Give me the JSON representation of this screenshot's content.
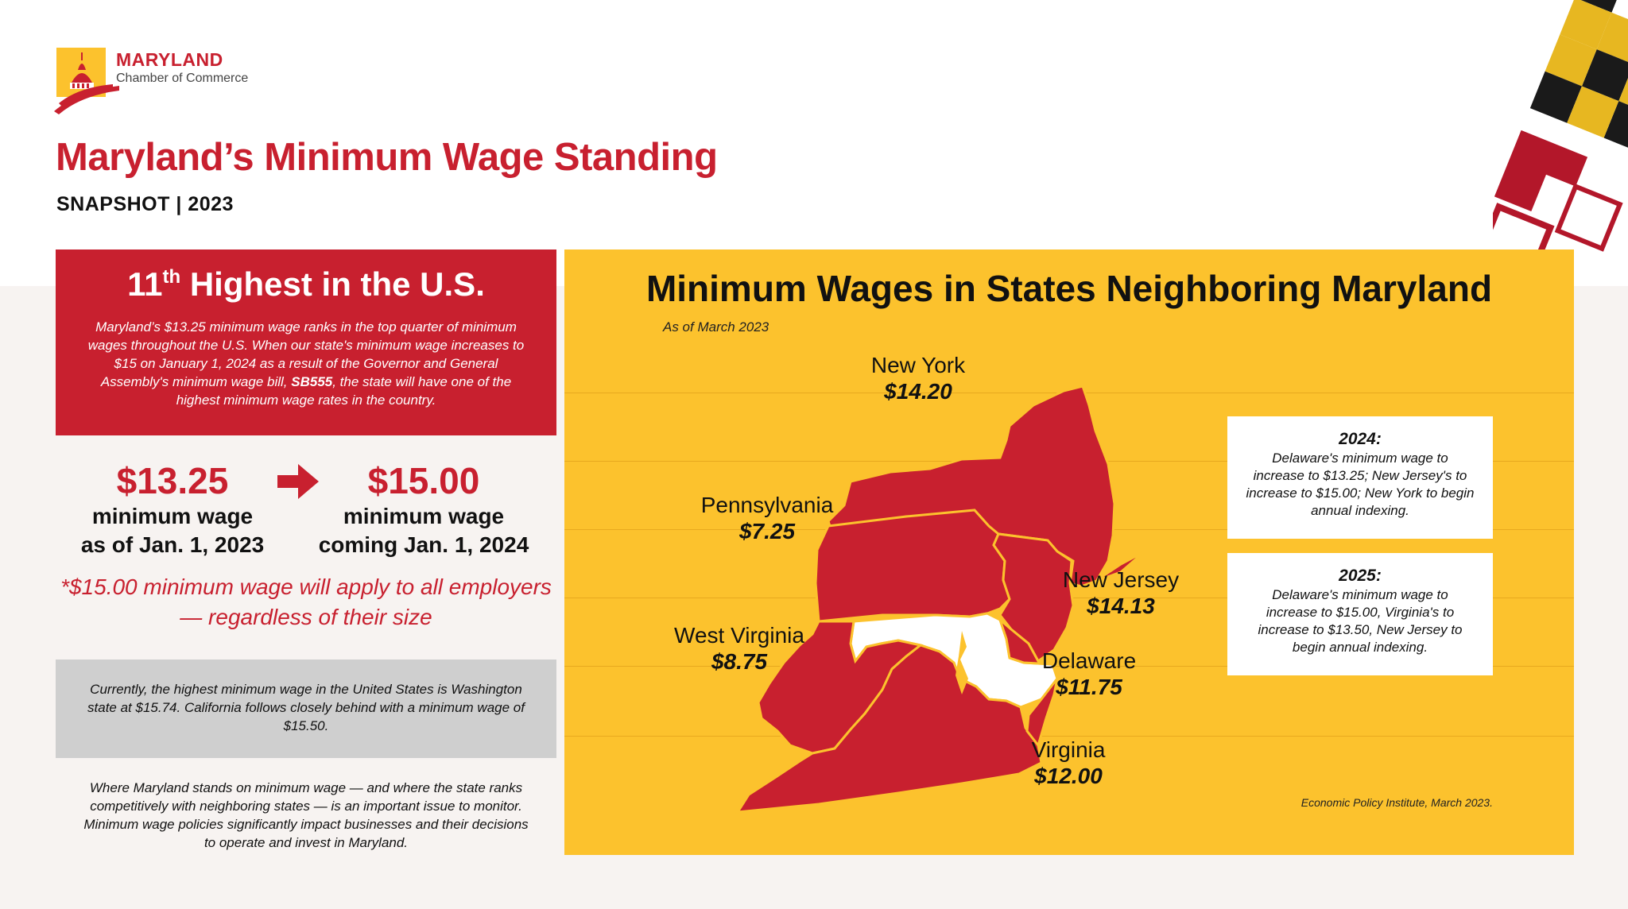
{
  "logo": {
    "name": "MARYLAND",
    "subtitle": "Chamber of Commerce"
  },
  "header": {
    "title": "Maryland’s Minimum Wage Standing",
    "subtitle": "SNAPSHOT | 2023"
  },
  "ranking": {
    "rank_number": "11",
    "rank_suffix": "th",
    "rank_rest": " Highest in the U.S.",
    "body_before": "Maryland’s $13.25 minimum wage ranks in the top quarter of minimum wages throughout the U.S. When our state's minimum wage increases to $15 on January 1, 2024 as a result of the Governor and General Assembly's minimum wage bill, ",
    "body_bold": "SB555",
    "body_after": ", the state will have one of the highest minimum wage rates in the country."
  },
  "wage_change": {
    "current": {
      "value": "$13.25",
      "line1": "minimum wage",
      "line2": "as of Jan. 1, 2023"
    },
    "future": {
      "value": "$15.00",
      "line1": "minimum wage",
      "line2": "coming Jan. 1, 2024"
    },
    "note": "*$15.00 minimum wage will apply to all employers — regardless of their size"
  },
  "highest_note": "Currently, the highest minimum wage in the United States is Washington state at $15.74. California follows closely behind with a minimum wage of $15.50.",
  "closing": "Where Maryland stands on minimum wage — and where the state ranks competitively with neighboring states — is an important issue to monitor. Minimum wage policies significantly impact businesses and their decisions to operate and invest in Maryland.",
  "map": {
    "title": "Minimum Wages in States Neighboring Maryland",
    "as_of": "As of March 2023",
    "states": [
      {
        "name": "New York",
        "wage": "$14.20"
      },
      {
        "name": "Pennsylvania",
        "wage": "$7.25"
      },
      {
        "name": "New Jersey",
        "wage": "$14.13"
      },
      {
        "name": "West Virginia",
        "wage": "$8.75"
      },
      {
        "name": "Delaware",
        "wage": "$11.75"
      },
      {
        "name": "Virginia",
        "wage": "$12.00"
      }
    ],
    "updates": [
      {
        "year": "2024:",
        "text": "Delaware's minimum wage to increase to $13.25; New Jersey's to increase to $15.00; New York to begin annual indexing."
      },
      {
        "year": "2025:",
        "text": "Delaware's minimum wage to increase to $15.00, Virginia's to increase to $13.50, New Jersey to begin annual indexing."
      }
    ],
    "source": "Economic Policy Institute, March 2023.",
    "colors": {
      "panel": "#fcc22d",
      "state_fill": "#c8202f",
      "maryland_fill": "#ffffff",
      "border": "#fcc22d"
    }
  }
}
